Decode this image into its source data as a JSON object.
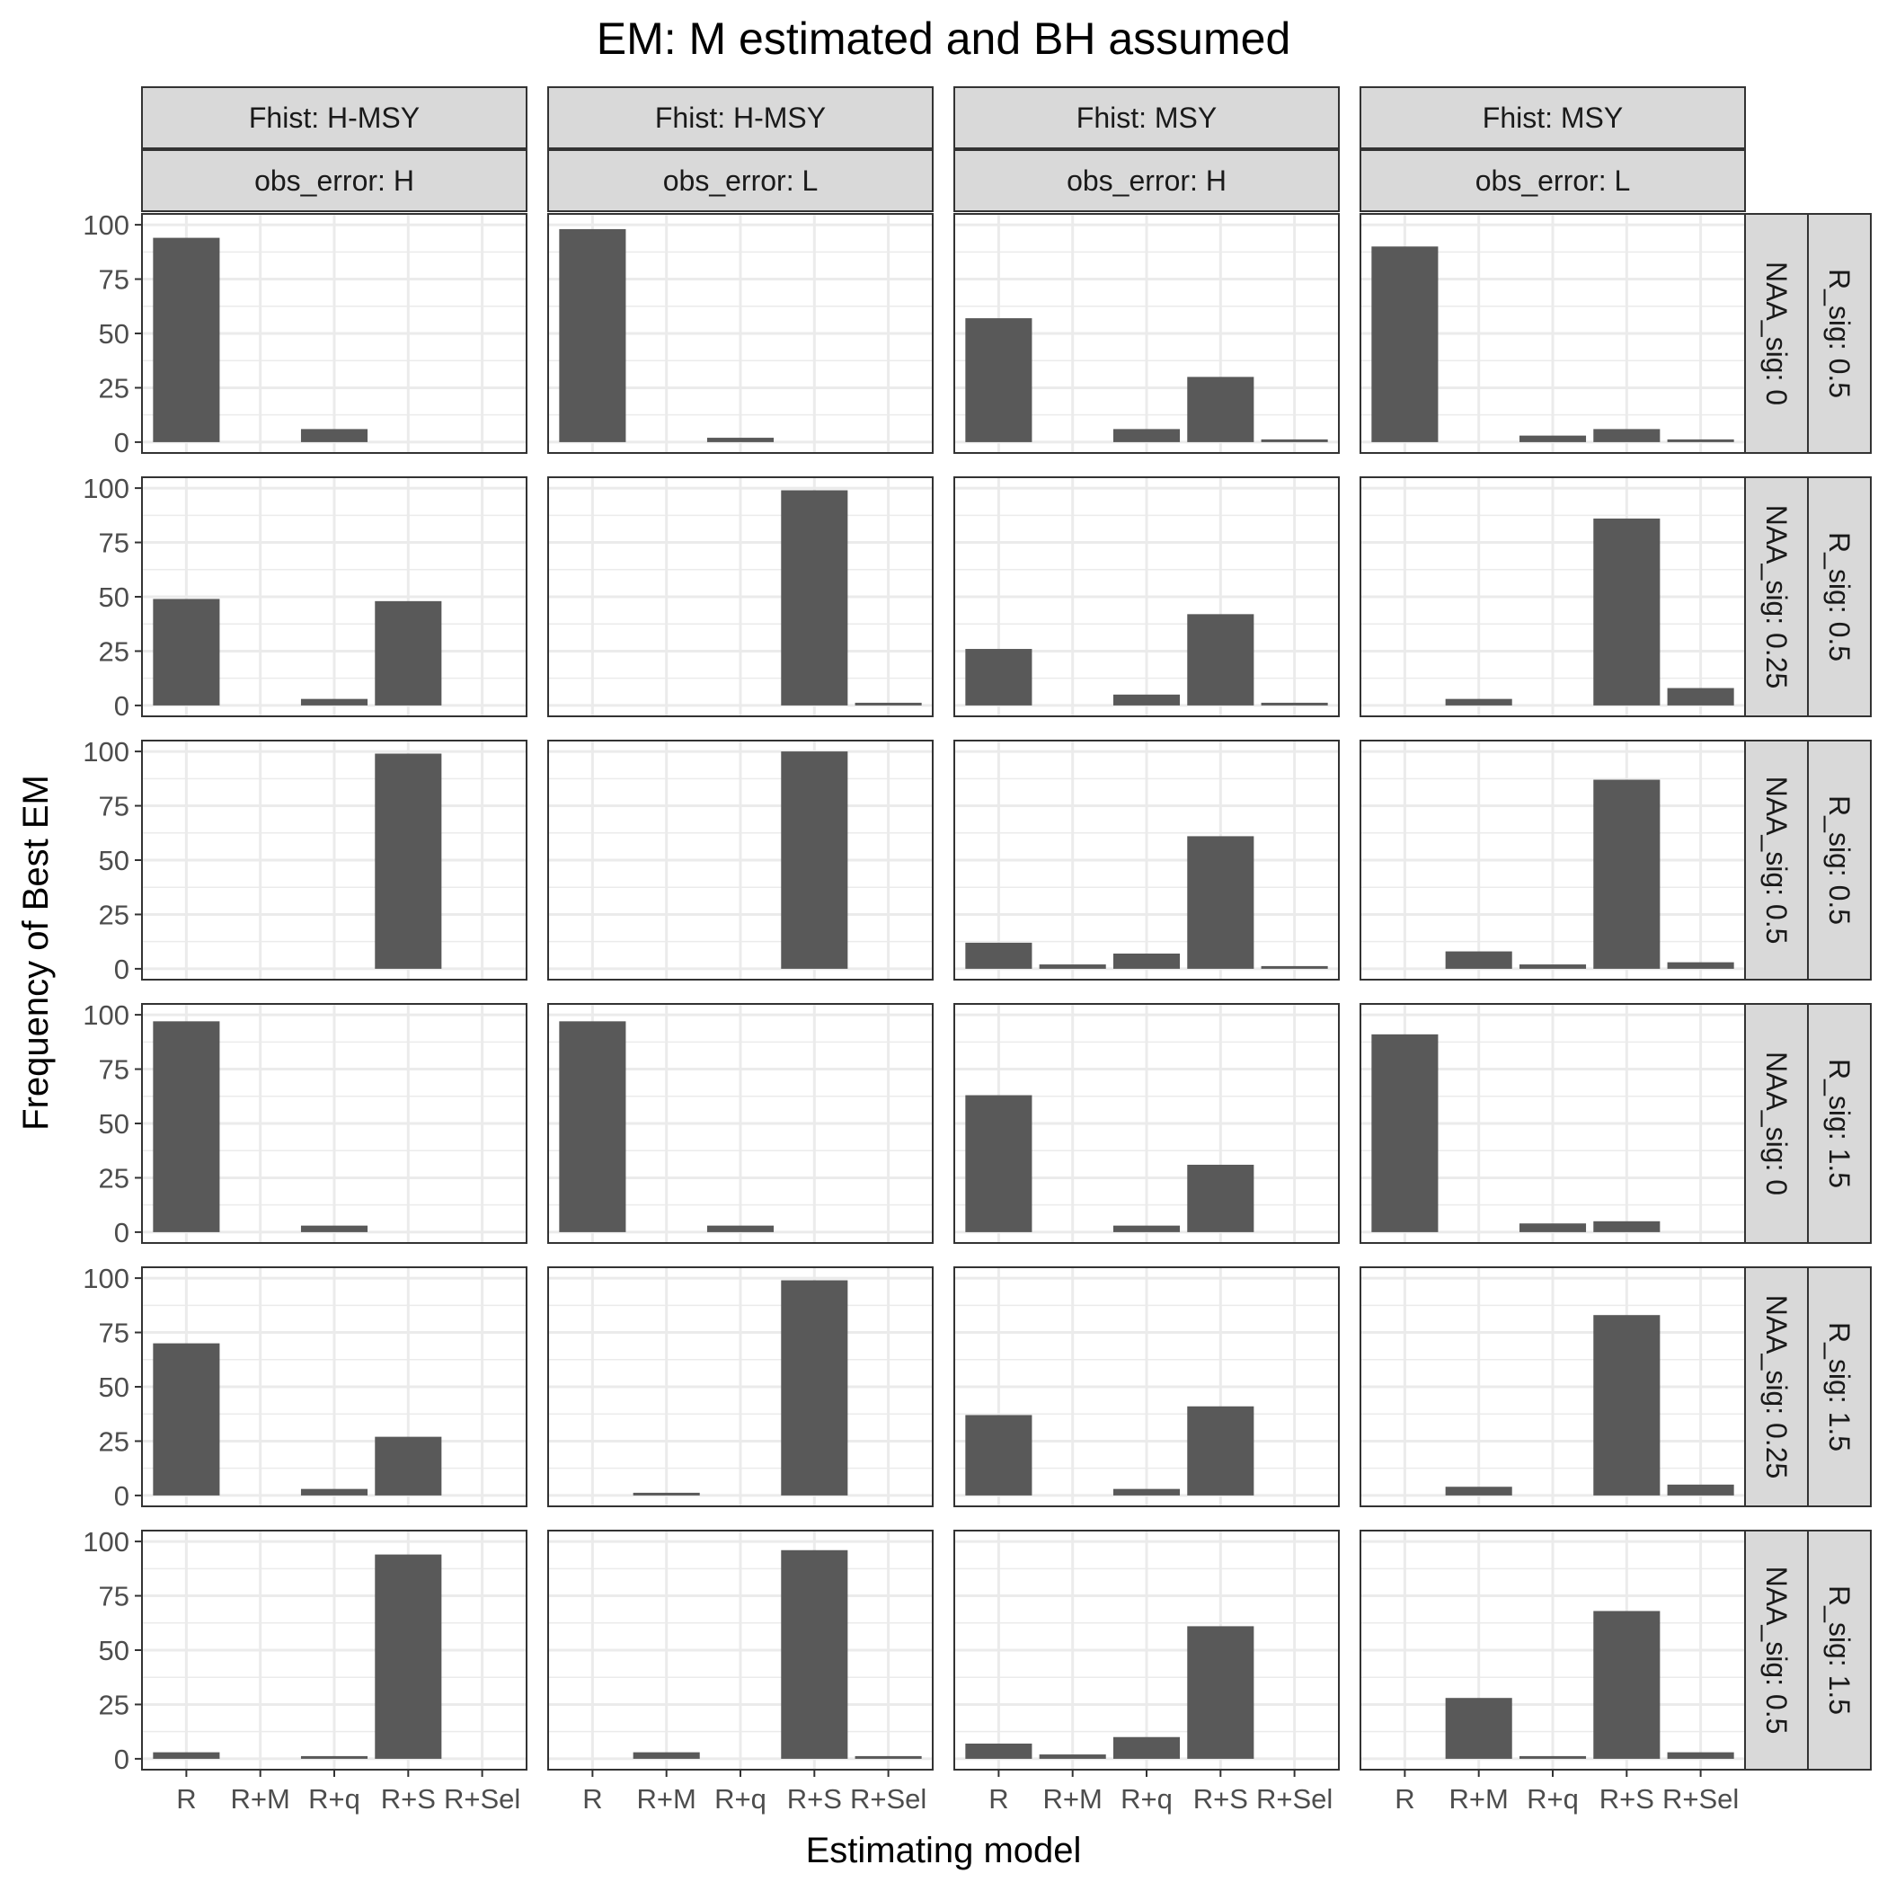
{
  "chart_data": {
    "type": "bar",
    "title": "EM: M estimated and BH assumed",
    "xlabel": "Estimating model",
    "ylabel": "Frequency of Best EM",
    "categories": [
      "R",
      "R+M",
      "R+q",
      "R+S",
      "R+Sel"
    ],
    "ylim": [
      0,
      100
    ],
    "yticks": [
      0,
      25,
      50,
      75,
      100
    ],
    "grid": true,
    "bar_color": "#595959",
    "col_facets": [
      {
        "fhist": "Fhist: H-MSY",
        "obs_error": "obs_error: H"
      },
      {
        "fhist": "Fhist: H-MSY",
        "obs_error": "obs_error: L"
      },
      {
        "fhist": "Fhist: MSY",
        "obs_error": "obs_error: H"
      },
      {
        "fhist": "Fhist: MSY",
        "obs_error": "obs_error: L"
      }
    ],
    "row_facets": [
      {
        "naa_sig": "NAA_sig: 0",
        "r_sig": "R_sig: 0.5"
      },
      {
        "naa_sig": "NAA_sig: 0.25",
        "r_sig": "R_sig: 0.5"
      },
      {
        "naa_sig": "NAA_sig: 0.5",
        "r_sig": "R_sig: 0.5"
      },
      {
        "naa_sig": "NAA_sig: 0",
        "r_sig": "R_sig: 1.5"
      },
      {
        "naa_sig": "NAA_sig: 0.25",
        "r_sig": "R_sig: 1.5"
      },
      {
        "naa_sig": "NAA_sig: 0.5",
        "r_sig": "R_sig: 1.5"
      }
    ],
    "panels": [
      [
        [
          94,
          0,
          6,
          0,
          0
        ],
        [
          98,
          0,
          2,
          0,
          0
        ],
        [
          57,
          0,
          6,
          30,
          1
        ],
        [
          90,
          0,
          3,
          6,
          1
        ]
      ],
      [
        [
          49,
          0,
          3,
          48,
          0
        ],
        [
          0,
          0,
          0,
          99,
          1
        ],
        [
          26,
          0,
          5,
          42,
          1
        ],
        [
          0,
          3,
          0,
          86,
          8
        ]
      ],
      [
        [
          0,
          0,
          0,
          99,
          0
        ],
        [
          0,
          0,
          0,
          100,
          0
        ],
        [
          12,
          2,
          7,
          61,
          1
        ],
        [
          0,
          8,
          2,
          87,
          3
        ]
      ],
      [
        [
          97,
          0,
          3,
          0,
          0
        ],
        [
          97,
          0,
          3,
          0,
          0
        ],
        [
          63,
          0,
          3,
          31,
          0
        ],
        [
          91,
          0,
          4,
          5,
          0
        ]
      ],
      [
        [
          70,
          0,
          3,
          27,
          0
        ],
        [
          0,
          1,
          0,
          99,
          0
        ],
        [
          37,
          0,
          3,
          41,
          0
        ],
        [
          0,
          4,
          0,
          83,
          5
        ]
      ],
      [
        [
          3,
          0,
          1,
          94,
          0
        ],
        [
          0,
          3,
          0,
          96,
          1
        ],
        [
          7,
          2,
          10,
          61,
          0
        ],
        [
          0,
          28,
          1,
          68,
          3
        ]
      ]
    ]
  }
}
